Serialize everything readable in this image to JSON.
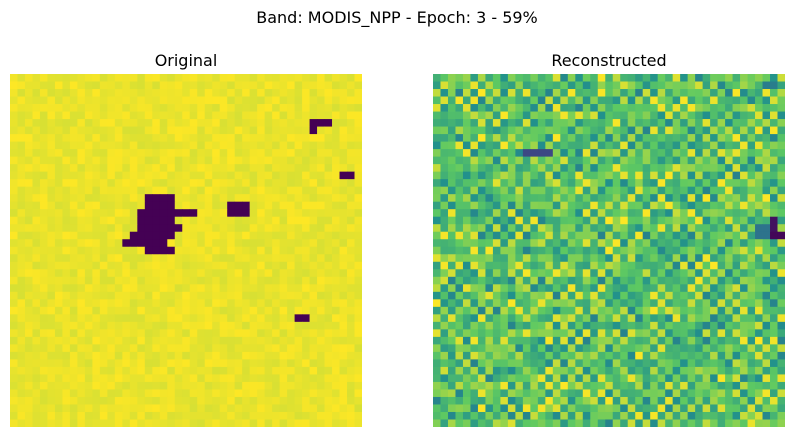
{
  "figure_title": "Band: MODIS_NPP - Epoch: 3 - 59%",
  "colormap": {
    "name": "viridis",
    "stops": [
      "#440154",
      "#3b528b",
      "#21918c",
      "#5ec962",
      "#fde725"
    ]
  },
  "chart_data": [
    {
      "type": "heatmap",
      "title": "Original",
      "axes": "off",
      "grid": false,
      "grid_size": [
        47,
        47
      ],
      "value_range": [
        0,
        1
      ],
      "base_value": 0.97,
      "noise": 0.03,
      "blocks": [
        {
          "row": 6,
          "col": 40,
          "rows": 1,
          "cols": 3,
          "value": 0.0
        },
        {
          "row": 7,
          "col": 40,
          "rows": 1,
          "cols": 1,
          "value": 0.0
        },
        {
          "row": 13,
          "col": 44,
          "rows": 1,
          "cols": 2,
          "value": 0.0
        },
        {
          "row": 16,
          "col": 18,
          "rows": 1,
          "cols": 4,
          "value": 0.0
        },
        {
          "row": 17,
          "col": 18,
          "rows": 1,
          "cols": 4,
          "value": 0.0
        },
        {
          "row": 18,
          "col": 17,
          "rows": 1,
          "cols": 6,
          "value": 0.0
        },
        {
          "row": 19,
          "col": 17,
          "rows": 1,
          "cols": 5,
          "value": 0.0
        },
        {
          "row": 20,
          "col": 17,
          "rows": 1,
          "cols": 6,
          "value": 0.0
        },
        {
          "row": 21,
          "col": 16,
          "rows": 1,
          "cols": 6,
          "value": 0.0
        },
        {
          "row": 22,
          "col": 15,
          "rows": 1,
          "cols": 6,
          "value": 0.0
        },
        {
          "row": 23,
          "col": 18,
          "rows": 1,
          "cols": 4,
          "value": 0.0
        },
        {
          "row": 18,
          "col": 22,
          "rows": 1,
          "cols": 3,
          "value": 0.0
        },
        {
          "row": 17,
          "col": 29,
          "rows": 2,
          "cols": 3,
          "value": 0.0
        },
        {
          "row": 32,
          "col": 38,
          "rows": 1,
          "cols": 2,
          "value": 0.0
        }
      ]
    },
    {
      "type": "heatmap",
      "title": "Reconstructed",
      "axes": "off",
      "grid": false,
      "grid_size": [
        47,
        47
      ],
      "value_range": [
        0,
        1
      ],
      "base_value": 0.72,
      "noise": 0.2,
      "checker_amplitude": 0.08,
      "blocks": [
        {
          "row": 10,
          "col": 12,
          "rows": 1,
          "cols": 4,
          "value": 0.22
        },
        {
          "row": 19,
          "col": 45,
          "rows": 2,
          "cols": 1,
          "value": 0.05
        },
        {
          "row": 21,
          "col": 45,
          "rows": 1,
          "cols": 2,
          "value": 0.02
        },
        {
          "row": 20,
          "col": 43,
          "rows": 2,
          "cols": 2,
          "value": 0.38
        },
        {
          "row": 1,
          "col": 44,
          "rows": 1,
          "cols": 2,
          "value": 0.42
        }
      ]
    }
  ]
}
